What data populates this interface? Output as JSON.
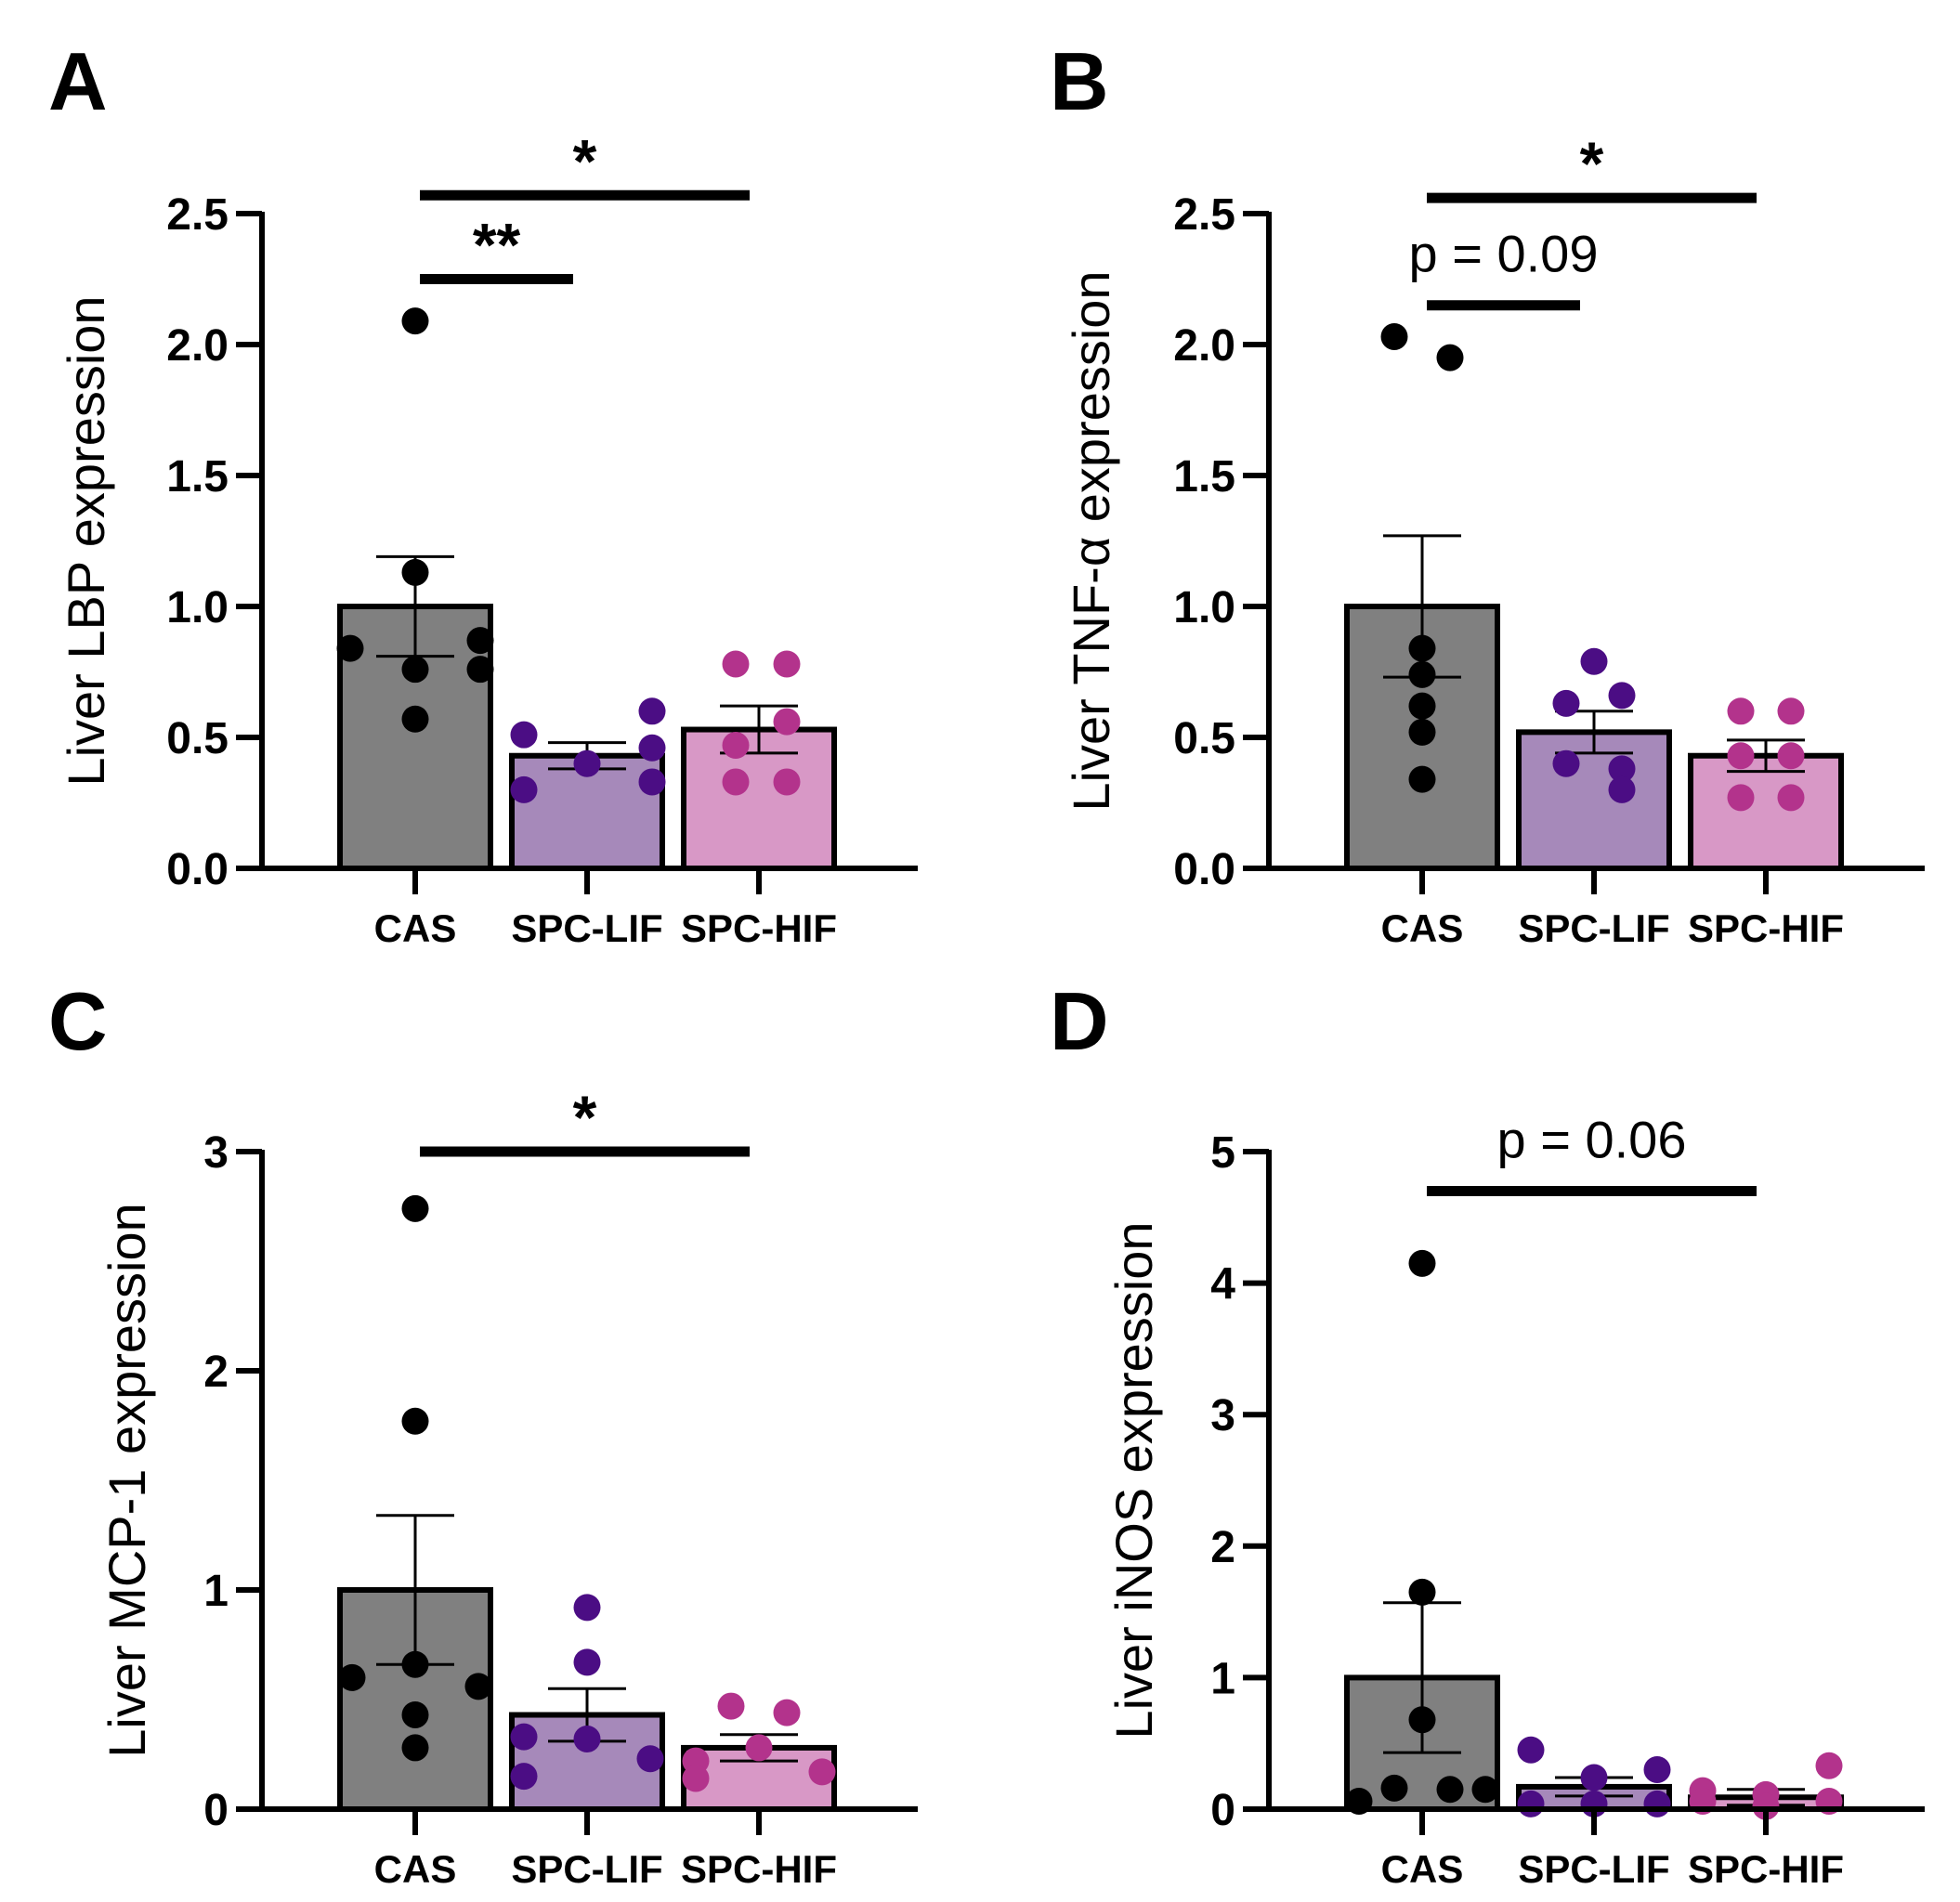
{
  "colors": {
    "CAS": {
      "bar": "#808080",
      "dot": "#000000"
    },
    "SPC-LIF": {
      "bar": "#a689ba",
      "dot": "#4b0d84"
    },
    "SPC-HIF": {
      "bar": "#d898c6",
      "dot": "#b3338c"
    }
  },
  "chart_data": [
    {
      "panel": "A",
      "type": "bar",
      "ylabel": "Liver LBP expression",
      "categories": [
        "CAS",
        "SPC-LIF",
        "SPC-HIF"
      ],
      "ylim": [
        0,
        2.5
      ],
      "yticks": [
        "0.0",
        "0.5",
        "1.0",
        "1.5",
        "2.0",
        "2.5"
      ],
      "means": [
        1.0,
        0.43,
        0.53
      ],
      "sem": [
        0.19,
        0.05,
        0.09
      ],
      "points": [
        [
          2.09,
          1.13,
          0.84,
          0.87,
          0.76,
          0.76,
          0.57
        ],
        [
          0.51,
          0.4,
          0.6,
          0.46,
          0.3,
          0.33
        ],
        [
          0.78,
          0.78,
          0.56,
          0.47,
          0.33,
          0.33
        ]
      ],
      "significance": [
        {
          "from": 0,
          "to": 1,
          "label": "**",
          "y": 2.25
        },
        {
          "from": 0,
          "to": 2,
          "label": "*",
          "y": 2.57
        }
      ]
    },
    {
      "panel": "B",
      "type": "bar",
      "ylabel": "Liver TNF-α expression",
      "categories": [
        "CAS",
        "SPC-LIF",
        "SPC-HIF"
      ],
      "ylim": [
        0,
        2.5
      ],
      "yticks": [
        "0.0",
        "0.5",
        "1.0",
        "1.5",
        "2.0",
        "2.5"
      ],
      "means": [
        1.0,
        0.52,
        0.43
      ],
      "sem": [
        0.27,
        0.08,
        0.06
      ],
      "points": [
        [
          2.03,
          1.95,
          0.84,
          0.74,
          0.62,
          0.52,
          0.34
        ],
        [
          0.79,
          0.66,
          0.63,
          0.4,
          0.38,
          0.3
        ],
        [
          0.6,
          0.6,
          0.43,
          0.43,
          0.27,
          0.27
        ]
      ],
      "significance": [
        {
          "from": 0,
          "to": 1,
          "label": "p = 0.09",
          "y": 2.15
        },
        {
          "from": 0,
          "to": 2,
          "label": "*",
          "y": 2.56
        }
      ]
    },
    {
      "panel": "C",
      "type": "bar",
      "ylabel": "Liver MCP-1 expression",
      "categories": [
        "CAS",
        "SPC-LIF",
        "SPC-HIF"
      ],
      "ylim": [
        0,
        3
      ],
      "yticks": [
        "0",
        "1",
        "2",
        "3"
      ],
      "means": [
        1.0,
        0.43,
        0.28
      ],
      "sem": [
        0.34,
        0.12,
        0.06
      ],
      "points": [
        [
          2.74,
          1.77,
          0.66,
          0.6,
          0.56,
          0.43,
          0.28
        ],
        [
          0.92,
          0.67,
          0.33,
          0.32,
          0.23,
          0.15
        ],
        [
          0.47,
          0.44,
          0.28,
          0.22,
          0.17,
          0.14
        ]
      ],
      "significance": [
        {
          "from": 0,
          "to": 2,
          "label": "*",
          "y": 3.0
        }
      ]
    },
    {
      "panel": "D",
      "type": "bar",
      "ylabel": "Liver iNOS expression",
      "categories": [
        "CAS",
        "SPC-LIF",
        "SPC-HIF"
      ],
      "ylim": [
        0,
        5
      ],
      "yticks": [
        "0",
        "1",
        "2",
        "3",
        "4",
        "5"
      ],
      "means": [
        1.0,
        0.17,
        0.09
      ],
      "sem": [
        0.57,
        0.07,
        0.06
      ],
      "points": [
        [
          4.15,
          1.65,
          0.68,
          0.16,
          0.15,
          0.15,
          0.06
        ],
        [
          0.45,
          0.24,
          0.3,
          0.04,
          0.04,
          0.04
        ],
        [
          0.33,
          0.14,
          0.11,
          0.06,
          0.06,
          0.02
        ]
      ],
      "significance": [
        {
          "from": 0,
          "to": 2,
          "label": "p = 0.06",
          "y": 4.7
        }
      ]
    }
  ]
}
